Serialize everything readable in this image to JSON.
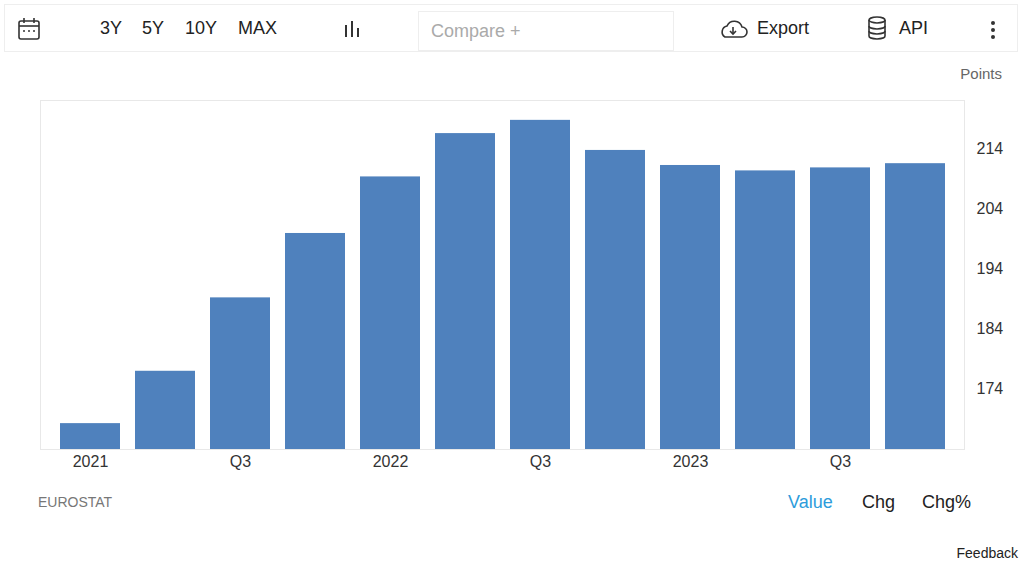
{
  "chart_data": {
    "type": "bar",
    "categories": [
      "2021",
      null,
      "Q3",
      null,
      "2022",
      null,
      "Q3",
      null,
      "2023",
      null,
      "Q3",
      null
    ],
    "values": [
      168.3,
      177.0,
      189.2,
      199.9,
      209.3,
      216.5,
      218.7,
      213.7,
      211.2,
      210.3,
      210.8,
      211.5
    ],
    "color": "#4f81bd",
    "ylim": [
      164,
      222
    ],
    "yticks": [
      174,
      184,
      194,
      204,
      214
    ],
    "y_label": "Points",
    "grid": false,
    "source": "EUROSTAT"
  },
  "toolbar": {
    "ranges": [
      "3Y",
      "5Y",
      "10Y",
      "MAX"
    ],
    "compare": "Compare +",
    "export": "Export",
    "api": "API"
  },
  "value_modes": [
    "Value",
    "Chg",
    "Chg%"
  ],
  "selected_mode": "Value",
  "feedback": "Feedback"
}
